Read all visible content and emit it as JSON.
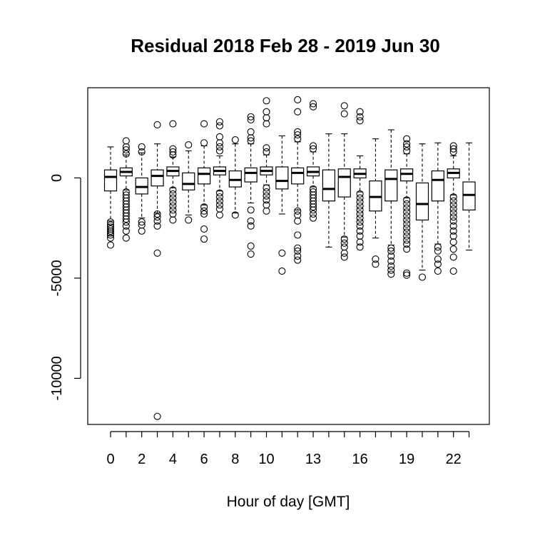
{
  "chart_data": {
    "type": "boxplot",
    "title": "Residual  2018 Feb 28 - 2019 Jun 30",
    "xlabel": "Hour of day [GMT]",
    "ylabel": "",
    "ylim": [
      -12300,
      4500
    ],
    "y_ticks": [
      0,
      -5000,
      -10000
    ],
    "y_tick_labels": [
      "0",
      "-5000",
      "-10000"
    ],
    "x_tick_labels": [
      "0",
      "2",
      "4",
      "6",
      "8",
      "10",
      "13",
      "16",
      "19",
      "22"
    ],
    "x_tick_label_hours": [
      0,
      2,
      4,
      6,
      8,
      10,
      13,
      16,
      19,
      22
    ],
    "grid": false,
    "legend": "none",
    "boxes": [
      {
        "hour": 0,
        "lower": -2150,
        "q1": -650,
        "median": 50,
        "q3": 400,
        "upper": 1550,
        "outliers": [
          -2200,
          -2350,
          -2450,
          -2550,
          -2650,
          -2750,
          -2850,
          -3000,
          -3350
        ]
      },
      {
        "hour": 1,
        "lower": -600,
        "q1": 100,
        "median": 300,
        "q3": 500,
        "upper": 1150,
        "outliers": [
          1200,
          1400,
          1550,
          1850,
          -700,
          -850,
          -1000,
          -1150,
          -1300,
          -1450,
          -1600,
          -1750,
          -1900,
          -2050,
          -2200,
          -2400,
          -2650,
          -3000
        ]
      },
      {
        "hour": 2,
        "lower": -2000,
        "q1": -800,
        "median": -450,
        "q3": 0,
        "upper": 1250,
        "outliers": [
          1300,
          1550,
          -2200,
          -2350,
          -2650
        ]
      },
      {
        "hour": 3,
        "lower": -1750,
        "q1": -400,
        "median": 100,
        "q3": 400,
        "upper": 1700,
        "outliers": [
          2650,
          -1800,
          -1950,
          -2150,
          -2400,
          -3750,
          -11900
        ]
      },
      {
        "hour": 4,
        "lower": -500,
        "q1": 100,
        "median": 350,
        "q3": 550,
        "upper": 1050,
        "outliers": [
          1150,
          1300,
          1450,
          2700,
          -600,
          -800,
          -1000,
          -1200,
          -1400,
          -1600,
          -1800,
          -2100
        ]
      },
      {
        "hour": 5,
        "lower": -1850,
        "q1": -600,
        "median": -300,
        "q3": 250,
        "upper": 1350,
        "outliers": [
          1650,
          -2100
        ]
      },
      {
        "hour": 6,
        "lower": -1350,
        "q1": -300,
        "median": 200,
        "q3": 500,
        "upper": 1600,
        "outliers": [
          1750,
          2700,
          -1450,
          -1650,
          -1800,
          -2550,
          -3050
        ]
      },
      {
        "hour": 7,
        "lower": -650,
        "q1": 150,
        "median": 350,
        "q3": 550,
        "upper": 1100,
        "outliers": [
          1350,
          1550,
          1750,
          2050,
          2600,
          2800,
          -750,
          -950,
          -1150,
          -1350,
          -1550,
          -1850
        ]
      },
      {
        "hour": 8,
        "lower": -1750,
        "q1": -450,
        "median": -100,
        "q3": 350,
        "upper": 1700,
        "outliers": [
          1900,
          -1850
        ]
      },
      {
        "hour": 9,
        "lower": -1250,
        "q1": -200,
        "median": 250,
        "q3": 500,
        "upper": 1700,
        "outliers": [
          1850,
          2000,
          2300,
          2900,
          3050,
          -1600,
          -2150,
          -2400,
          -3400,
          -3800
        ]
      },
      {
        "hour": 10,
        "lower": -350,
        "q1": 150,
        "median": 350,
        "q3": 550,
        "upper": 1150,
        "outliers": [
          1300,
          1500,
          2700,
          3000,
          3300,
          3850,
          -500,
          -700,
          -900,
          -1100,
          -1350,
          -1650
        ]
      },
      {
        "hour": 11,
        "lower": -1800,
        "q1": -550,
        "median": -150,
        "q3": 550,
        "upper": 2100,
        "outliers": [
          -3750,
          -4650
        ]
      },
      {
        "hour": 12,
        "lower": -1600,
        "q1": -300,
        "median": 250,
        "q3": 500,
        "upper": 1800,
        "outliers": [
          1950,
          2150,
          2300,
          3300,
          3900,
          -1650,
          -1850,
          -2150,
          -2850,
          -3500,
          -3650,
          -3900,
          -4100
        ]
      },
      {
        "hour": 13,
        "lower": -450,
        "q1": 100,
        "median": 300,
        "q3": 550,
        "upper": 1300,
        "outliers": [
          1450,
          1600,
          3550,
          3700,
          -550,
          -700,
          -850,
          -1000,
          -1150,
          -1300,
          -1450,
          -1600,
          -1800,
          -2000
        ]
      },
      {
        "hour": 14,
        "lower": -3450,
        "q1": -1150,
        "median": -550,
        "q3": 400,
        "upper": 2200,
        "outliers": []
      },
      {
        "hour": 15,
        "lower": -2950,
        "q1": -950,
        "median": 50,
        "q3": 450,
        "upper": 2200,
        "outliers": [
          3200,
          3600,
          -3050,
          -3250,
          -3450,
          -3750,
          -3950
        ]
      },
      {
        "hour": 16,
        "lower": -700,
        "q1": 0,
        "median": 200,
        "q3": 450,
        "upper": 1100,
        "outliers": [
          2850,
          3050,
          3300,
          -800,
          -1000,
          -1200,
          -1400,
          -1600,
          -1800,
          -2000,
          -2200,
          -2400,
          -2650,
          -2900,
          -3200,
          -3450
        ]
      },
      {
        "hour": 17,
        "lower": -3000,
        "q1": -1650,
        "median": -950,
        "q3": -150,
        "upper": 1950,
        "outliers": [
          -4050,
          -4300
        ]
      },
      {
        "hour": 18,
        "lower": -3350,
        "q1": -1150,
        "median": -50,
        "q3": 400,
        "upper": 2400,
        "outliers": [
          -3500,
          -3650,
          -3900,
          -4150,
          -4400,
          -4600,
          -4800
        ]
      },
      {
        "hour": 19,
        "lower": -1000,
        "q1": -150,
        "median": 200,
        "q3": 450,
        "upper": 1200,
        "outliers": [
          1350,
          1550,
          1700,
          1950,
          -1100,
          -1300,
          -1500,
          -1700,
          -1900,
          -2100,
          -2300,
          -2500,
          -2700,
          -2900,
          -3100,
          -3300,
          -3550,
          -4750,
          -4850
        ]
      },
      {
        "hour": 20,
        "lower": -4600,
        "q1": -2100,
        "median": -1300,
        "q3": -250,
        "upper": 1700,
        "outliers": [
          -4950
        ]
      },
      {
        "hour": 21,
        "lower": -3300,
        "q1": -1150,
        "median": -100,
        "q3": 350,
        "upper": 1750,
        "outliers": [
          -3450,
          -3650,
          -4050,
          -4300,
          -4650
        ]
      },
      {
        "hour": 22,
        "lower": -850,
        "q1": 0,
        "median": 250,
        "q3": 450,
        "upper": 1100,
        "outliers": [
          1300,
          1450,
          1600,
          -950,
          -1150,
          -1350,
          -1550,
          -1750,
          -1950,
          -2150,
          -2400,
          -2650,
          -2900,
          -3200,
          -3550,
          -3950,
          -4650
        ]
      },
      {
        "hour": 23,
        "lower": -3600,
        "q1": -1600,
        "median": -850,
        "q3": -200,
        "upper": 1750,
        "outliers": []
      }
    ]
  }
}
